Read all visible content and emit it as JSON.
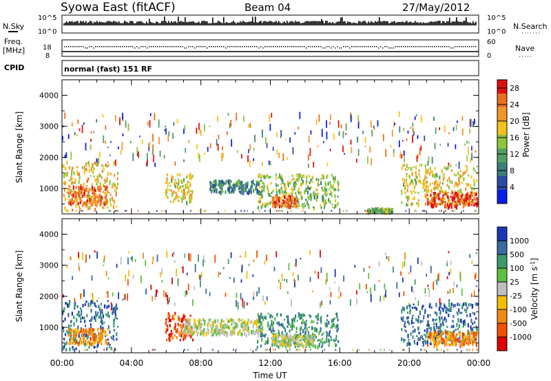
{
  "header": {
    "title": "Syowa East (fitACF)",
    "beam": "Beam 04",
    "date": "27/May/2012"
  },
  "noise_panel": {
    "left_label": "N.Sky",
    "right_label": "N.Search",
    "left_ticks": [
      "10^5",
      "10^0"
    ],
    "right_ticks": [
      "10^5",
      "10^0"
    ]
  },
  "freq_panel": {
    "left_label_1": "Freq.",
    "left_label_2": "[MHz]",
    "right_label": "Nave",
    "left_ticks": [
      "18",
      "8"
    ],
    "right_ticks": [
      "60",
      "0"
    ]
  },
  "cpid_panel": {
    "label": "CPID",
    "text": "normal (fast) 151 RF"
  },
  "colors": {
    "power": [
      "#0a1ee6",
      "#2a4aa6",
      "#3c7e7a",
      "#52a060",
      "#8cc63e",
      "#f5c21c",
      "#f0962a",
      "#e8701e",
      "#e01010"
    ],
    "velocity": [
      "#1a36b0",
      "#3a6aa0",
      "#3a9a6a",
      "#5cc040",
      "#bfbfbf",
      "#f0c000",
      "#f08a10",
      "#f05000",
      "#e00000"
    ]
  },
  "chart_data": [
    {
      "type": "heatmap",
      "name": "power",
      "xlabel": "",
      "ylabel": "Slant Range [km]",
      "x_ticks": [
        "00:00",
        "04:00",
        "08:00",
        "12:00",
        "16:00",
        "20:00",
        "00:00"
      ],
      "y_ticks": [
        "1000",
        "2000",
        "3000",
        "4000"
      ],
      "ylim": [
        180,
        4500
      ],
      "colorbar_label": "Power [dB]",
      "colorbar_ticks": [
        "4",
        "8",
        "12",
        "16",
        "20",
        "24",
        "28"
      ],
      "colorbar_range": [
        0,
        30
      ],
      "regions": [
        {
          "t": [
            0.0,
            3.2
          ],
          "r": [
            300,
            1900
          ],
          "level": 20
        },
        {
          "t": [
            0.3,
            2.6
          ],
          "r": [
            550,
            1100
          ],
          "level": 26
        },
        {
          "t": [
            5.9,
            7.5
          ],
          "r": [
            600,
            1500
          ],
          "level": 18
        },
        {
          "t": [
            8.5,
            11.5
          ],
          "r": [
            900,
            1300
          ],
          "level": 8
        },
        {
          "t": [
            11.2,
            15.9
          ],
          "r": [
            400,
            1500
          ],
          "level": 14
        },
        {
          "t": [
            12.0,
            13.5
          ],
          "r": [
            450,
            800
          ],
          "level": 26
        },
        {
          "t": [
            17.5,
            19.0
          ],
          "r": [
            250,
            400
          ],
          "level": 14
        },
        {
          "t": [
            19.5,
            23.9
          ],
          "r": [
            500,
            1800
          ],
          "level": 18
        },
        {
          "t": [
            21.0,
            23.9
          ],
          "r": [
            450,
            900
          ],
          "level": 28
        }
      ]
    },
    {
      "type": "heatmap",
      "name": "velocity",
      "xlabel": "Time UT",
      "ylabel": "Slant Range [km]",
      "x_ticks": [
        "00:00",
        "04:00",
        "08:00",
        "12:00",
        "16:00",
        "20:00",
        "00:00"
      ],
      "y_ticks": [
        "1000",
        "2000",
        "3000",
        "4000"
      ],
      "ylim": [
        180,
        4500
      ],
      "colorbar_label": "Velocity [m s^-1]",
      "colorbar_ticks": [
        "1000",
        "500",
        "100",
        "25",
        "-25",
        "-100",
        "-500",
        "-1000"
      ],
      "regions": [
        {
          "t": [
            0.0,
            3.2
          ],
          "r": [
            300,
            1900
          ],
          "level": 500
        },
        {
          "t": [
            0.3,
            2.6
          ],
          "r": [
            500,
            1000
          ],
          "level": -300
        },
        {
          "t": [
            5.9,
            7.5
          ],
          "r": [
            600,
            1500
          ],
          "level": -500
        },
        {
          "t": [
            7.0,
            11.5
          ],
          "r": [
            800,
            1300
          ],
          "level": 0
        },
        {
          "t": [
            11.2,
            15.9
          ],
          "r": [
            400,
            1500
          ],
          "level": 150
        },
        {
          "t": [
            12.0,
            14.5
          ],
          "r": [
            450,
            800
          ],
          "level": 0
        },
        {
          "t": [
            19.5,
            23.9
          ],
          "r": [
            500,
            1800
          ],
          "level": 300
        },
        {
          "t": [
            21.0,
            23.9
          ],
          "r": [
            450,
            900
          ],
          "level": -200
        }
      ]
    }
  ]
}
